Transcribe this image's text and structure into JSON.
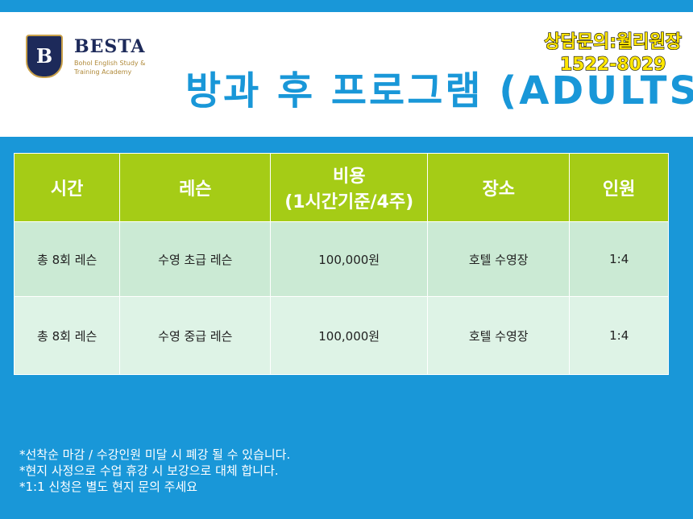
{
  "header": {
    "logo_letter": "B",
    "logo_name": "BESTA",
    "logo_sub": [
      "Bohol English Study &",
      "Training Academy"
    ],
    "title": "방과 후 프로그램 (ADULTS)",
    "contact": [
      "상담문의:월리원장",
      "1522-8029"
    ]
  },
  "table": {
    "columns": [
      "시간",
      "레슨",
      [
        "비용",
        "(1시간기준/4주)"
      ],
      "장소",
      "인원"
    ],
    "rows": [
      [
        "총 8회 레슨",
        "수영 초급 레슨",
        "100,000원",
        "호텔 수영장",
        "1:4"
      ],
      [
        "총 8회 레슨",
        "수영 중급 레슨",
        "100,000원",
        "호텔 수영장",
        "1:4"
      ]
    ]
  },
  "notes": [
    "*선착순 마감 / 수강인원 미달 시 폐강 될 수 있습니다.",
    "*현지 사정으로 수업 휴강 시 보강으로 대체 합니다.",
    "*1:1 신청은 별도 현지 문의 주세요"
  ]
}
